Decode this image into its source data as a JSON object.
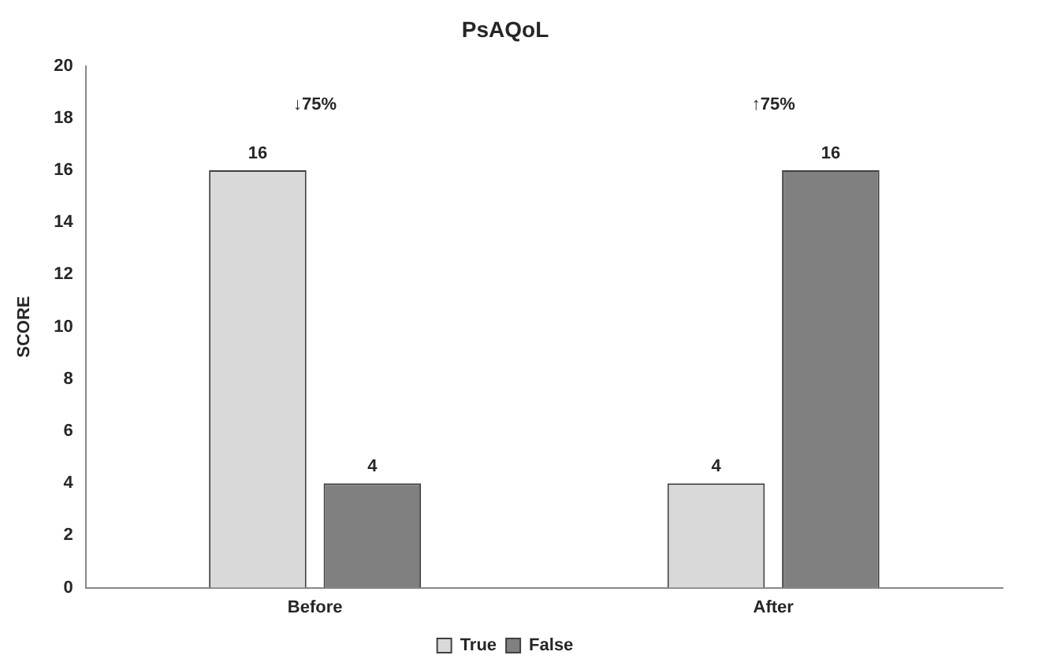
{
  "chart_data": {
    "type": "bar",
    "title": "PsAQoL",
    "ylabel": "SCORE",
    "categories": [
      "Before",
      "After"
    ],
    "series": [
      {
        "name": "True",
        "color": "#d9d9d9",
        "values": [
          16,
          4
        ]
      },
      {
        "name": "False",
        "color": "#808080",
        "values": [
          4,
          16
        ]
      }
    ],
    "ylim": [
      0,
      20
    ],
    "yticks": [
      0,
      2,
      4,
      6,
      8,
      10,
      12,
      14,
      16,
      18,
      20
    ],
    "grid": false,
    "legend": "bottom",
    "data_labels": true,
    "annotations": [
      "↓75%",
      "↑75%"
    ]
  }
}
